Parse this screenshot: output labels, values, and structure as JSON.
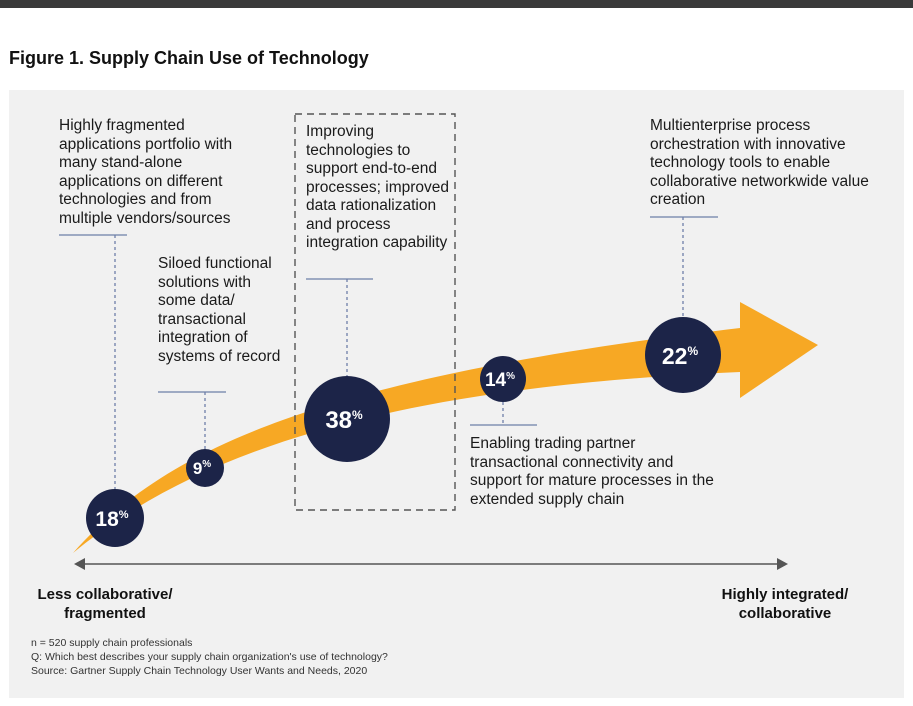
{
  "figure": {
    "title": "Figure 1. Supply Chain Use of Technology"
  },
  "stages": [
    {
      "id": "fragmented",
      "percent": "18",
      "percent_sign": "%",
      "description": "Highly fragmented applications portfolio with many stand-alone applications on different technologies and from multiple vendors/sources"
    },
    {
      "id": "siloed",
      "percent": "9",
      "percent_sign": "%",
      "description": "Siloed functional solutions with some data/ transactional integration of systems of record"
    },
    {
      "id": "improving",
      "percent": "38",
      "percent_sign": "%",
      "description": "Improving technologies to support end-to-end processes; improved data rationalization and process integration capability",
      "highlighted": true
    },
    {
      "id": "trading-partner",
      "percent": "14",
      "percent_sign": "%",
      "description": "Enabling trading partner transactional connectivity and support for mature processes in the extended supply chain"
    },
    {
      "id": "multienterprise",
      "percent": "22",
      "percent_sign": "%",
      "description": "Multienterprise process orchestration with innovative technology tools to enable collaborative networkwide value creation"
    }
  ],
  "axis": {
    "left_label": "Less collaborative/ fragmented",
    "right_label": "Highly integrated/ collaborative"
  },
  "notes": {
    "sample": "n = 520 supply chain professionals",
    "question": "Q: Which best describes your supply chain organization's use of technology?",
    "source": "Source: Gartner Supply Chain Technology User Wants and Needs, 2020"
  },
  "colors": {
    "arrow": "#f7a824",
    "circle": "#1c2448",
    "panel": "#f1f1f1",
    "connector": "#6e7fa8"
  }
}
